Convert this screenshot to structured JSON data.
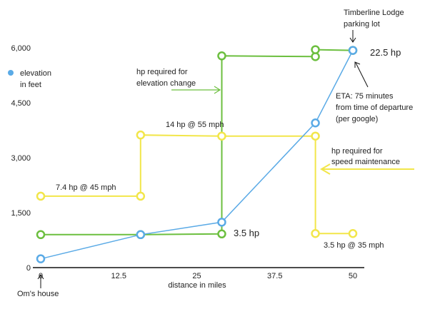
{
  "chart_data": {
    "type": "line",
    "xlabel": "distance in miles",
    "x_ticks": [
      "0",
      "12.5",
      "25",
      "37.5",
      "50"
    ],
    "y_ticks": [
      "0",
      "1,500",
      "3,000",
      "4,500",
      "6,000"
    ],
    "xlim": [
      0,
      50
    ],
    "ylim": [
      0,
      6000
    ],
    "grid": false,
    "legend_placement": "left",
    "series": [
      {
        "name": "elevation in feet",
        "color": "#5aaae6",
        "points": [
          [
            0,
            240
          ],
          [
            16,
            900
          ],
          [
            29,
            1240
          ],
          [
            44,
            3950
          ],
          [
            50,
            5930
          ]
        ]
      }
    ],
    "yellow_steps": [
      [
        0,
        1950
      ],
      [
        16,
        1950
      ],
      [
        16,
        3620
      ],
      [
        29,
        3590
      ],
      [
        44,
        3590
      ],
      [
        44,
        930
      ],
      [
        50,
        930
      ]
    ],
    "green_steps": [
      [
        0,
        900
      ],
      [
        16,
        900
      ],
      [
        29,
        920
      ],
      [
        29,
        5780
      ],
      [
        44,
        5760
      ],
      [
        44,
        5950
      ],
      [
        50,
        5930
      ]
    ],
    "step_colors": {
      "yellow": "#f2e64a",
      "green": "#6cbf3f"
    },
    "annotations": {
      "timberline": [
        "Timberline Lodge",
        "parking lot"
      ],
      "hp_22_5": "22.5 hp",
      "eta": [
        "ETA: 75 minutes",
        "from time of departure",
        "(per google)"
      ],
      "hp_elev": [
        "hp required for",
        "elevation change"
      ],
      "hp_14": "14 hp  @   55 mph",
      "hp_speed": [
        "hp required for",
        "speed maintenance"
      ],
      "hp_7_4": "7.4 hp  @ 45 mph",
      "hp_3_5": "3.5 hp",
      "hp_3_5_35": "3.5 hp  @ 35 mph",
      "oms_house": "Om's house",
      "legend_label": [
        "elevation",
        "in feet"
      ]
    }
  }
}
